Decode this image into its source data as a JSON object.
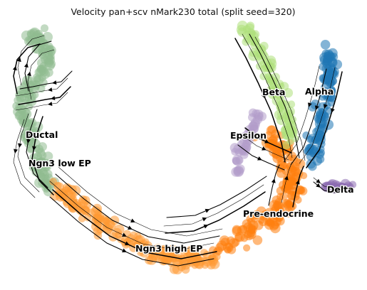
{
  "chart_data": {
    "type": "scatter",
    "title": "Velocity pan+scv nMark230 total (split seed=320)",
    "xlabel": "",
    "ylabel": "",
    "axes_visible": false,
    "grid": false,
    "legend": "on data",
    "overlay": "velocity streamlines with arrowheads",
    "clusters": [
      {
        "id": "ductal",
        "label": "Ductal",
        "color": "#8fbc8f"
      },
      {
        "id": "ngn3low",
        "label": "Ngn3 low EP",
        "color": "#8fbc8f"
      },
      {
        "id": "ngn3high",
        "label": "Ngn3 high EP",
        "color": "#ff9933"
      },
      {
        "id": "preendo",
        "label": "Pre-endocrine",
        "color": "#ff7f0e"
      },
      {
        "id": "beta",
        "label": "Beta",
        "color": "#aee07c"
      },
      {
        "id": "alpha",
        "label": "Alpha",
        "color": "#1f77b4"
      },
      {
        "id": "epsilon",
        "label": "Epsilon",
        "color": "#b39ccb"
      },
      {
        "id": "delta",
        "label": "Delta",
        "color": "#8c6bb1"
      }
    ]
  }
}
